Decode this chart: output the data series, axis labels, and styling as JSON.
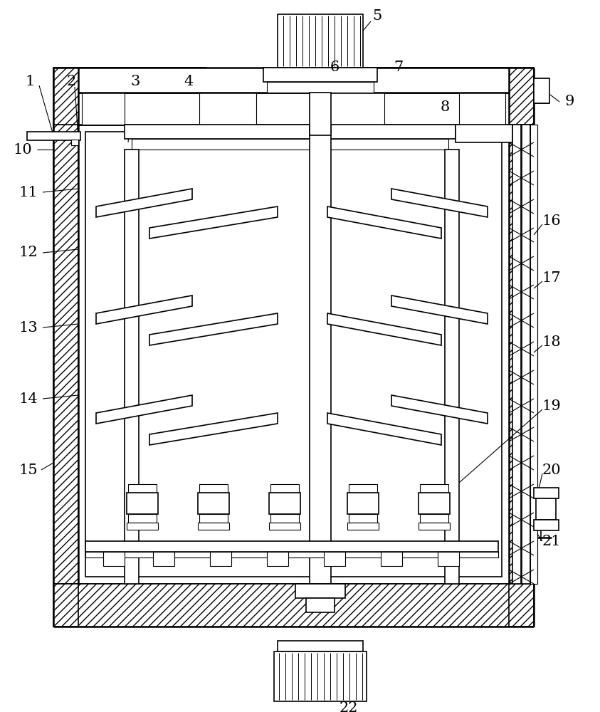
{
  "fig_width": 8.43,
  "fig_height": 10.0,
  "bg_color": "#ffffff",
  "line_color": "#000000"
}
